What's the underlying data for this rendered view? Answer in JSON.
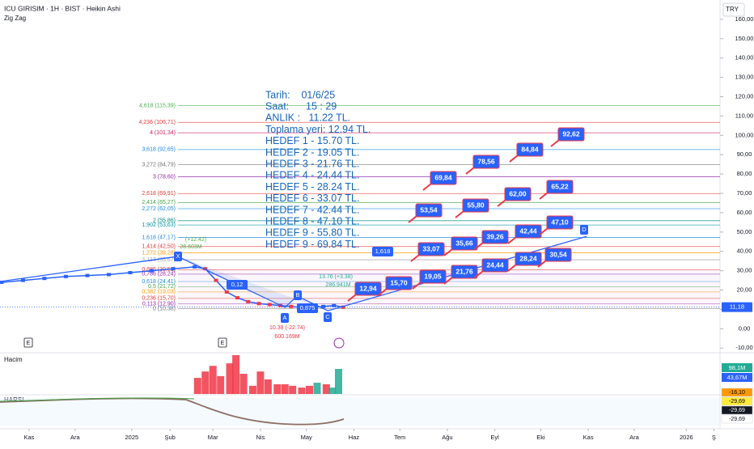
{
  "header": {
    "title": "ICU GIRISIM · 1H · BIST · Heikin Ashi",
    "indicator": "Zig Zag",
    "currency": "TRY"
  },
  "chart_data": {
    "type": "line",
    "x": [
      "2024-10-14",
      "2024-10-28",
      "2024-11-11",
      "2024-11-25",
      "2024-12-09",
      "2024-12-23",
      "2025-01-06",
      "2025-01-20",
      "2025-02-03",
      "2025-02-17",
      "2025-02-24",
      "2025-03-03",
      "2025-03-10",
      "2025-03-17",
      "2025-03-24",
      "2025-03-31",
      "2025-04-07",
      "2025-04-14",
      "2025-04-21",
      "2025-04-28",
      "2025-05-05",
      "2025-05-12",
      "2025-05-19",
      "2025-05-25"
    ],
    "values": [
      24,
      25,
      26,
      27,
      27.5,
      28,
      29,
      30,
      31,
      32,
      31,
      25,
      19,
      16,
      14,
      13,
      12.5,
      12,
      11.5,
      11,
      11,
      11.5,
      12,
      11.18
    ],
    "color": "#2962ff",
    "ylim": [
      -12,
      170
    ],
    "yticks": [
      {
        "value": -10,
        "label": "-10,00"
      },
      {
        "value": 0,
        "label": "0,00"
      },
      {
        "value": 10,
        "label": "10,00"
      },
      {
        "value": 20,
        "label": "20,00"
      },
      {
        "value": 30,
        "label": "30,00"
      },
      {
        "value": 40,
        "label": "40,00"
      },
      {
        "value": 50,
        "label": "50,00"
      },
      {
        "value": 60,
        "label": "60,00"
      },
      {
        "value": 70,
        "label": "70,00"
      },
      {
        "value": 80,
        "label": "80,00"
      },
      {
        "value": 90,
        "label": "90,00"
      },
      {
        "value": 100,
        "label": "100,00"
      },
      {
        "value": 110,
        "label": "110,00"
      },
      {
        "value": 120,
        "label": "120,00"
      },
      {
        "value": 130,
        "label": "130,00"
      },
      {
        "value": 140,
        "label": "140,00"
      },
      {
        "value": 150,
        "label": "150,00"
      },
      {
        "value": 160,
        "label": "160,00"
      }
    ],
    "xlim": [
      "2024-10-13",
      "2026-01-26"
    ],
    "xticks": [
      {
        "value": "2024-11-01",
        "label": "Kas"
      },
      {
        "value": "2024-12-01",
        "label": "Ara"
      },
      {
        "value": "2025-01-07",
        "label": "2025"
      },
      {
        "value": "2025-02-01",
        "label": "Şub"
      },
      {
        "value": "2025-03-01",
        "label": "Mar"
      },
      {
        "value": "2025-04-01",
        "label": "Nis"
      },
      {
        "value": "2025-05-01",
        "label": "May"
      },
      {
        "value": "2025-06-01",
        "label": "Haz"
      },
      {
        "value": "2025-07-01",
        "label": "Tem"
      },
      {
        "value": "2025-08-01",
        "label": "Ağu"
      },
      {
        "value": "2025-09-01",
        "label": "Eyl"
      },
      {
        "value": "2025-10-01",
        "label": "Eki"
      },
      {
        "value": "2025-11-01",
        "label": "Kas"
      },
      {
        "value": "2025-12-01",
        "label": "Ara"
      },
      {
        "value": "2026-01-04",
        "label": "2026"
      },
      {
        "value": "2026-01-22",
        "label": "Ş"
      }
    ],
    "last_price": {
      "value": 11.18,
      "label": "11,18"
    },
    "zigzag": {
      "x": [
        "2024-10-13",
        "2025-02-06",
        "2025-04-17",
        "2025-04-25",
        "2025-05-15",
        "2025-10-31"
      ],
      "values": [
        24.4,
        37.4,
        11.0,
        16.9,
        9.3,
        47.8
      ],
      "color": "#2962ff"
    },
    "fib_levels": [
      {
        "label": "4,618 (115,39)",
        "value": 115.39,
        "color": "#4caf50"
      },
      {
        "label": "4,236 (106,71)",
        "value": 106.71,
        "color": "#e53935"
      },
      {
        "label": "4 (101,34)",
        "value": 101.34,
        "color": "#d81b60"
      },
      {
        "label": "3,618 (92,65)",
        "value": 92.65,
        "color": "#1e88e5"
      },
      {
        "label": "3,272 (84,79)",
        "value": 84.79,
        "color": "#757575"
      },
      {
        "label": "3 (78,60)",
        "value": 78.6,
        "color": "#8e24aa"
      },
      {
        "label": "2,618 (69,91)",
        "value": 69.91,
        "color": "#e53935"
      },
      {
        "label": "2,414 (65,27)",
        "value": 65.27,
        "color": "#43a047"
      },
      {
        "label": "2,272 (62,05)",
        "value": 62.05,
        "color": "#1e88e5"
      },
      {
        "label": "2 (55,86)",
        "value": 55.86,
        "color": "#00897b"
      },
      {
        "label": "1,902 (53,63)",
        "value": 53.63,
        "color": "#0097a7"
      },
      {
        "label": "1,618 (47,17)",
        "value": 47.17,
        "color": "#1e88e5"
      },
      {
        "label": "1,414 (42,50)",
        "value": 42.5,
        "color": "#e53935"
      },
      {
        "label": "1,272 (39,28)",
        "value": 39.28,
        "color": "#ff9800"
      },
      {
        "label": "1,113 (35,67)",
        "value": 35.67,
        "color": "#9e9e9e"
      },
      {
        "label": "0,886 (30,51)",
        "value": 30.51,
        "color": "#e53935"
      },
      {
        "label": "0,786 (28,24)",
        "value": 28.24,
        "color": "#8e24aa"
      },
      {
        "label": "0,618 (24,41)",
        "value": 24.41,
        "color": "#1e88e5"
      },
      {
        "label": "0,5 (21,72)",
        "value": 21.72,
        "color": "#43a047"
      },
      {
        "label": "0,382 (19,03)",
        "value": 19.03,
        "color": "#ff9800"
      },
      {
        "label": "0,236 (15,70)",
        "value": 15.7,
        "color": "#e53935"
      },
      {
        "label": "0,113 (12,90)",
        "value": 12.9,
        "color": "#8e24aa"
      },
      {
        "label": "0 (10,38)",
        "value": 10.38,
        "color": "#757575"
      }
    ],
    "pattern_points": [
      "X",
      "A",
      "B",
      "C",
      "D"
    ],
    "info": [
      "Tarih:    01/6/25",
      "Saat:      15 : 29",
      "ANLIK :   11.22 TL.",
      "Toplama yeri: 12.94 TL.",
      "HEDEF 1 - 15.70 TL.",
      "HEDEF 2 - 19.05 TL.",
      "HEDEF 3 - 21.76 TL.",
      "HEDEF 4 - 24.44 TL.",
      "HEDEF 5 - 28.24 TL.",
      "HEDEF 6 - 33.07 TL.",
      "HEDEF 7 - 42.44 TL.",
      "HEDEF 8 - 47.10 TL.",
      "HEDEF 9 - 55.80 TL.",
      "HEDEF 9 - 69.84 TL."
    ],
    "targets": [
      "12,94",
      "15,70",
      "19,05",
      "21,76",
      "24,44",
      "28,24",
      "30,54",
      "33,07",
      "35,66",
      "39,26",
      "42,44",
      "47,10",
      "53,54",
      "55,80",
      "62,00",
      "65,22",
      "69,84",
      "78,56",
      "84,84",
      "92,62"
    ],
    "ratios": [
      "1,618",
      "0,12",
      "0,875"
    ],
    "stats": [
      "13.76 (+3.38)",
      "286.941M",
      "10.38 (-22.74)",
      "600.169M",
      "(+12.42)",
      "28.603M"
    ],
    "earnings": [
      "E",
      "E"
    ]
  },
  "volume": {
    "title": "Hacim",
    "x": [
      "2025-02-19",
      "2025-02-24",
      "2025-03-01",
      "2025-03-06",
      "2025-03-12",
      "2025-03-16",
      "2025-03-21",
      "2025-03-27",
      "2025-04-01",
      "2025-04-06",
      "2025-04-12",
      "2025-04-17",
      "2025-04-22",
      "2025-04-28",
      "2025-05-03",
      "2025-05-08",
      "2025-05-14",
      "2025-05-18",
      "2025-05-22"
    ],
    "values": [
      63,
      88,
      110,
      70,
      120,
      152,
      79,
      32,
      88,
      57,
      38,
      38,
      32,
      25,
      32,
      44,
      38,
      25,
      98.1
    ],
    "colors": [
      "#f23645",
      "#f23645",
      "#f23645",
      "#f23645",
      "#f23645",
      "#f23645",
      "#f23645",
      "#f23645",
      "#f23645",
      "#f23645",
      "#f23645",
      "#f23645",
      "#f23645",
      "#f23645",
      "#f23645",
      "#22ab94",
      "#f23645",
      "#22ab94",
      "#22ab94"
    ],
    "labels": [
      "98,1M",
      "43,67M"
    ]
  },
  "harsi": {
    "title": "HARSI",
    "labels": [
      "-16,10",
      "-29,69",
      "-29,69",
      "-29,69"
    ]
  }
}
